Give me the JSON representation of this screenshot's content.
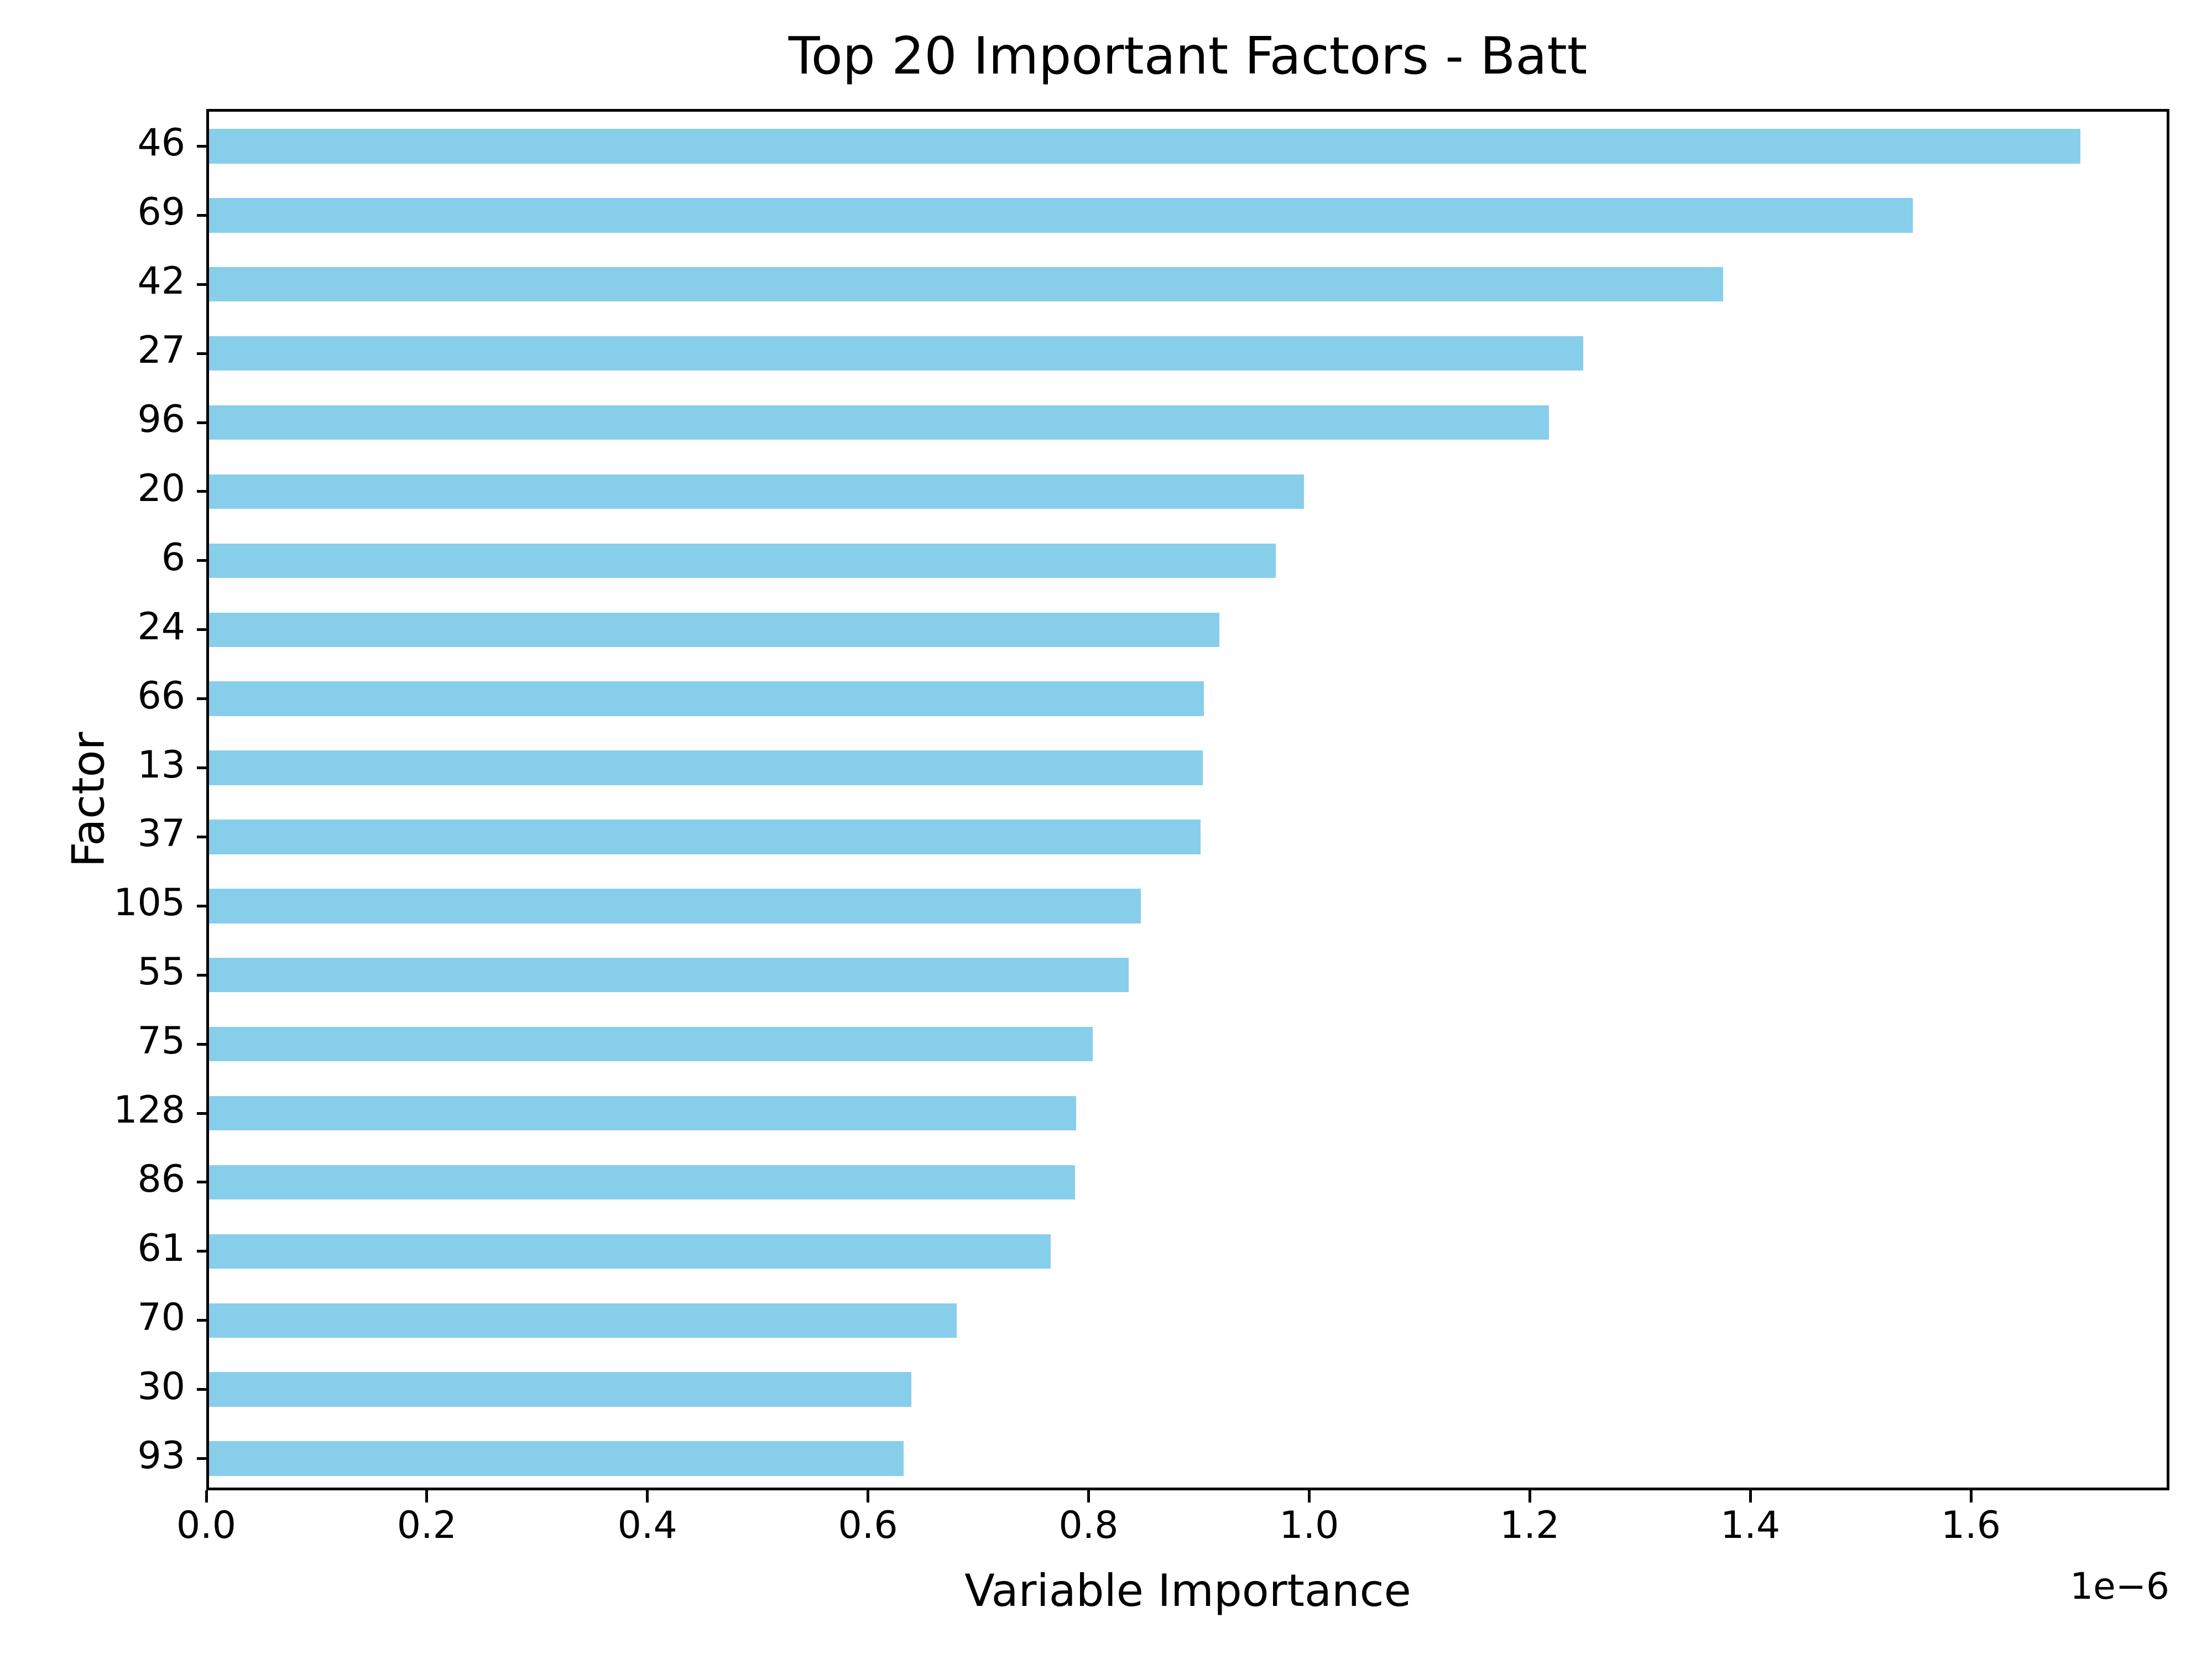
{
  "figure": {
    "background": "#ffffff",
    "frame_color": "#000000"
  },
  "chart_data": {
    "type": "bar",
    "orientation": "horizontal",
    "title": "Top 20 Important Factors - Batt",
    "xlabel": "Variable Importance",
    "ylabel": "Factor",
    "offset_text": "1e−6",
    "categories": [
      "46",
      "69",
      "42",
      "27",
      "96",
      "20",
      "6",
      "24",
      "66",
      "13",
      "37",
      "105",
      "55",
      "75",
      "128",
      "86",
      "61",
      "70",
      "30",
      "93"
    ],
    "values": [
      1.697,
      1.545,
      1.373,
      1.246,
      1.215,
      0.993,
      0.967,
      0.916,
      0.902,
      0.901,
      0.899,
      0.845,
      0.834,
      0.801,
      0.786,
      0.785,
      0.763,
      0.678,
      0.637,
      0.63
    ],
    "value_scale": "1e-6",
    "xlim": [
      0,
      1.78
    ],
    "xtick_values": [
      0.0,
      0.2,
      0.4,
      0.6,
      0.8,
      1.0,
      1.2,
      1.4,
      1.6
    ],
    "xtick_labels": [
      "0.0",
      "0.2",
      "0.4",
      "0.6",
      "0.8",
      "1.0",
      "1.2",
      "1.4",
      "1.6"
    ],
    "bar_color": "#87CEEB",
    "bar_width_fraction": 0.5,
    "grid": false,
    "legend": false
  }
}
